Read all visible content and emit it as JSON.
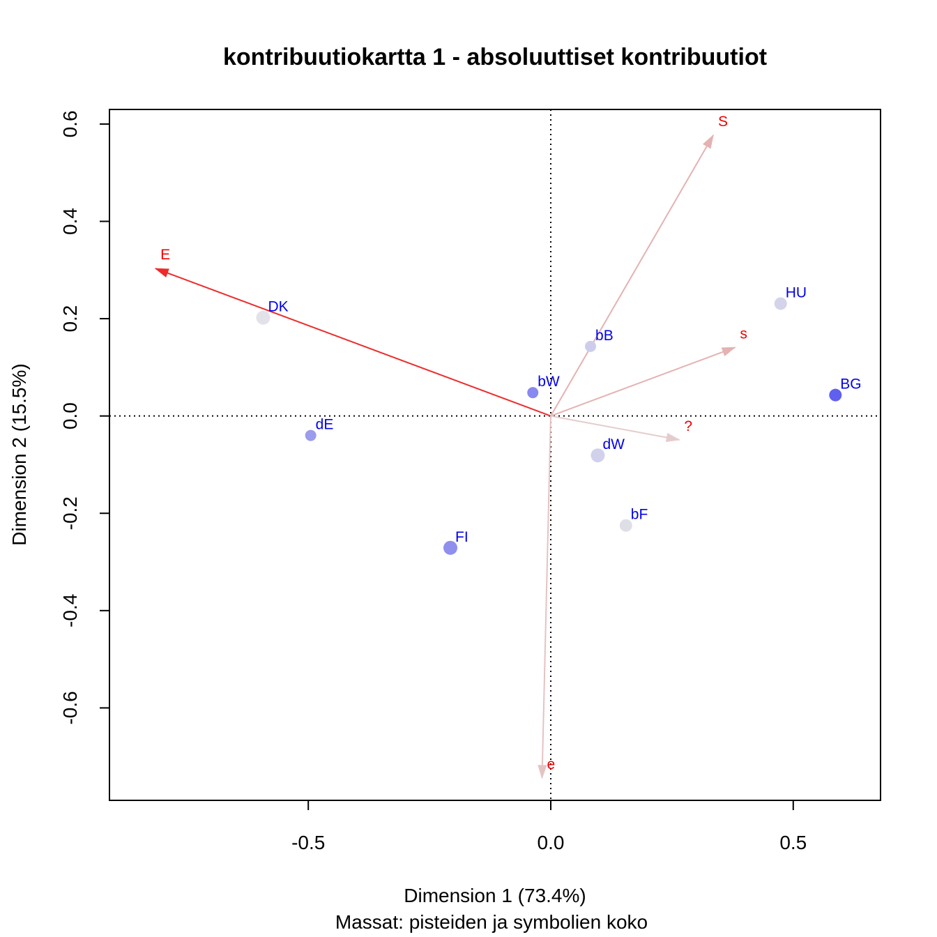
{
  "chart_data": {
    "type": "scatter",
    "title": "kontribuutiokartta 1 - absoluuttiset kontribuutiot",
    "xlabel": "Dimension 1 (73.4%)",
    "xlabel2": "Massat: pisteiden ja symbolien koko",
    "ylabel": "Dimension 2 (15.5%)",
    "xlim": [
      -0.91,
      0.68
    ],
    "ylim": [
      -0.79,
      0.63
    ],
    "x_ticks": [
      {
        "value": -0.5,
        "label": "-0.5"
      },
      {
        "value": 0.0,
        "label": "0.0"
      },
      {
        "value": 0.5,
        "label": "0.5"
      }
    ],
    "y_ticks": [
      {
        "value": -0.6,
        "label": "-0.6"
      },
      {
        "value": -0.4,
        "label": "-0.4"
      },
      {
        "value": -0.2,
        "label": "-0.2"
      },
      {
        "value": 0.0,
        "label": "0.0"
      },
      {
        "value": 0.2,
        "label": "0.2"
      },
      {
        "value": 0.4,
        "label": "0.4"
      },
      {
        "value": 0.6,
        "label": "0.6"
      }
    ],
    "reference_lines": {
      "x": 0,
      "y": 0,
      "style": "dotted"
    },
    "points": [
      {
        "label": "DK",
        "x": -0.593,
        "y": 0.202,
        "size": 10,
        "color": "#e2e2e8"
      },
      {
        "label": "HU",
        "x": 0.474,
        "y": 0.231,
        "size": 9,
        "color": "#d3d3ec"
      },
      {
        "label": "bB",
        "x": 0.082,
        "y": 0.143,
        "size": 8,
        "color": "#cdcdeb"
      },
      {
        "label": "bW",
        "x": -0.037,
        "y": 0.048,
        "size": 8,
        "color": "#8888ee"
      },
      {
        "label": "BG",
        "x": 0.587,
        "y": 0.043,
        "size": 9,
        "color": "#5f5ff0"
      },
      {
        "label": "dE",
        "x": -0.495,
        "y": -0.04,
        "size": 8,
        "color": "#9c9cec"
      },
      {
        "label": "dW",
        "x": 0.097,
        "y": -0.081,
        "size": 10,
        "color": "#d1d1ec"
      },
      {
        "label": "bF",
        "x": 0.155,
        "y": -0.225,
        "size": 9,
        "color": "#dedee6"
      },
      {
        "label": "FI",
        "x": -0.207,
        "y": -0.271,
        "size": 10,
        "color": "#8f8fee"
      }
    ],
    "arrows": [
      {
        "label": "E",
        "x": -0.815,
        "y": 0.303,
        "color": "#ee2a2a"
      },
      {
        "label": "S",
        "x": 0.335,
        "y": 0.577,
        "color": "#e4b2b2"
      },
      {
        "label": "s",
        "x": 0.38,
        "y": 0.141,
        "color": "#e4b2b2"
      },
      {
        "label": "?",
        "x": 0.265,
        "y": -0.049,
        "color": "#e5cccc"
      },
      {
        "label": "e",
        "x": -0.018,
        "y": -0.744,
        "color": "#e5c3c3"
      }
    ]
  }
}
